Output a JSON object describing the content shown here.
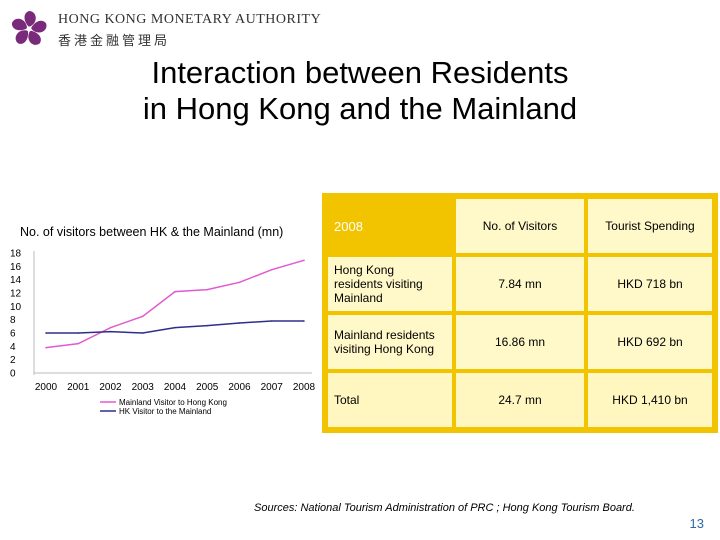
{
  "logo": {
    "name_en": "HONG KONG MONETARY AUTHORITY",
    "name_zh": "香港金融管理局"
  },
  "title": {
    "line1": "Interaction between Residents",
    "line2": "in Hong Kong and the Mainland"
  },
  "chart_data": {
    "type": "line",
    "title": "No. of visitors between HK & the Mainland (mn)",
    "categories": [
      "2000",
      "2001",
      "2002",
      "2003",
      "2004",
      "2005",
      "2006",
      "2007",
      "2008"
    ],
    "ylim": [
      0,
      18
    ],
    "yticks": [
      "0",
      "2",
      "4",
      "6",
      "8",
      "10",
      "12",
      "14",
      "16",
      "18"
    ],
    "series": [
      {
        "name": "Mainland Visitor to Hong Kong",
        "color": "#e05bd0",
        "values": [
          3.8,
          4.4,
          6.8,
          8.5,
          12.2,
          12.5,
          13.6,
          15.5,
          16.9
        ]
      },
      {
        "name": "HK Visitor to the Mainland",
        "color": "#2e2e8a",
        "values": [
          6.0,
          6.0,
          6.2,
          6.0,
          6.8,
          7.1,
          7.5,
          7.8,
          7.8
        ]
      }
    ],
    "legend_position": "bottom"
  },
  "table": {
    "header": {
      "year": "2008",
      "col1": "No. of Visitors",
      "col2": "Tourist Spending"
    },
    "rows": [
      {
        "label": "Hong Kong residents visiting Mainland",
        "visitors": "7.84 mn",
        "spending": "HKD 718 bn"
      },
      {
        "label": "Mainland residents visiting Hong Kong",
        "visitors": "16.86 mn",
        "spending": "HKD 692 bn"
      },
      {
        "label": "Total",
        "visitors": "24.7 mn",
        "spending": "HKD 1,410 bn"
      }
    ]
  },
  "source": "Sources: National Tourism Administration of PRC ; Hong Kong Tourism Board.",
  "page_number": "13"
}
